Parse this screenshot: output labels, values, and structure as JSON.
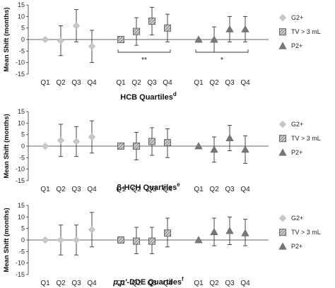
{
  "chart_data": [
    {
      "type": "scatter",
      "xlabel": "HCB Quartiles",
      "xlabel_sup": "d",
      "xlabel_italic_prefix": "",
      "ylabel": "Mean Shift (months)",
      "ylim": [
        -15,
        15
      ],
      "yticks": [
        -15,
        -10,
        -5,
        0,
        5,
        10,
        15
      ],
      "grid": false,
      "legend_position": "right",
      "categories": [
        "Q1",
        "Q2",
        "Q3",
        "Q4"
      ],
      "series": [
        {
          "name": "G2+",
          "marker": "diamond",
          "color": "#c8c8c8",
          "mean": [
            0,
            -0.5,
            6,
            -3
          ],
          "lower": [
            0,
            -7,
            -1,
            -10
          ],
          "upper": [
            0,
            6,
            13,
            4
          ]
        },
        {
          "name": "TV > 3 mL",
          "marker": "hatched-square",
          "color": "#9a9a9a",
          "mean": [
            0,
            3.5,
            8,
            5
          ],
          "lower": [
            0,
            -2.5,
            2,
            -1
          ],
          "upper": [
            0,
            9.5,
            14,
            11
          ]
        },
        {
          "name": "P2+",
          "marker": "triangle",
          "color": "#777777",
          "mean": [
            0,
            0,
            4.5,
            4.5
          ],
          "lower": [
            0,
            -5.5,
            -1,
            -1
          ],
          "upper": [
            0,
            5.5,
            10,
            10
          ]
        }
      ],
      "significance": [
        {
          "series": "TV > 3 mL",
          "label": "**"
        },
        {
          "series": "P2+",
          "label": "*"
        }
      ]
    },
    {
      "type": "scatter",
      "xlabel": "β-HCH Quartiles",
      "xlabel_sup": "e",
      "xlabel_italic_prefix": "",
      "ylabel": "Mean Shift (months)",
      "ylim": [
        -15,
        15
      ],
      "yticks": [
        -15,
        -10,
        -5,
        0,
        5,
        10,
        15
      ],
      "grid": false,
      "legend_position": "right",
      "categories": [
        "Q1",
        "Q2",
        "Q3",
        "Q4"
      ],
      "series": [
        {
          "name": "G2+",
          "marker": "diamond",
          "color": "#c8c8c8",
          "mean": [
            0,
            2.5,
            2,
            4
          ],
          "lower": [
            0,
            -4.5,
            -4.5,
            -3
          ],
          "upper": [
            0,
            9.5,
            8.5,
            11
          ]
        },
        {
          "name": "TV > 3 mL",
          "marker": "hatched-square",
          "color": "#9a9a9a",
          "mean": [
            0,
            0,
            2,
            1.5
          ],
          "lower": [
            0,
            -6,
            -4,
            -5
          ],
          "upper": [
            0,
            6,
            8,
            7.5
          ]
        },
        {
          "name": "P2+",
          "marker": "triangle",
          "color": "#777777",
          "mean": [
            0,
            -1.5,
            3.5,
            -1.5
          ],
          "lower": [
            0,
            -7,
            -2,
            -7.5
          ],
          "upper": [
            0,
            4,
            9,
            4.5
          ]
        }
      ],
      "significance": []
    },
    {
      "type": "scatter",
      "xlabel": "-DDE Quartiles",
      "xlabel_sup": "f",
      "xlabel_italic_prefix": "p,p′",
      "ylabel": "Mean Shift (months)",
      "ylim": [
        -15,
        15
      ],
      "yticks": [
        -15,
        -10,
        -5,
        0,
        5,
        10,
        15
      ],
      "grid": false,
      "legend_position": "right",
      "categories": [
        "Q1",
        "Q2",
        "Q3",
        "Q4"
      ],
      "series": [
        {
          "name": "G2+",
          "marker": "diamond",
          "color": "#c8c8c8",
          "mean": [
            0,
            0,
            0,
            4.5
          ],
          "lower": [
            0,
            -6.5,
            -6.5,
            -3
          ],
          "upper": [
            0,
            6.5,
            6.5,
            12
          ]
        },
        {
          "name": "TV > 3 mL",
          "marker": "hatched-square",
          "color": "#9a9a9a",
          "mean": [
            0,
            -0.5,
            -0.5,
            3
          ],
          "lower": [
            0,
            -6,
            -6,
            -3
          ],
          "upper": [
            0,
            5.5,
            5.5,
            9.5
          ]
        },
        {
          "name": "P2+",
          "marker": "triangle",
          "color": "#777777",
          "mean": [
            0,
            3.5,
            4,
            3
          ],
          "lower": [
            0,
            -2.5,
            -2,
            -2.5
          ],
          "upper": [
            0,
            9.5,
            10,
            9
          ]
        }
      ],
      "significance": []
    }
  ]
}
